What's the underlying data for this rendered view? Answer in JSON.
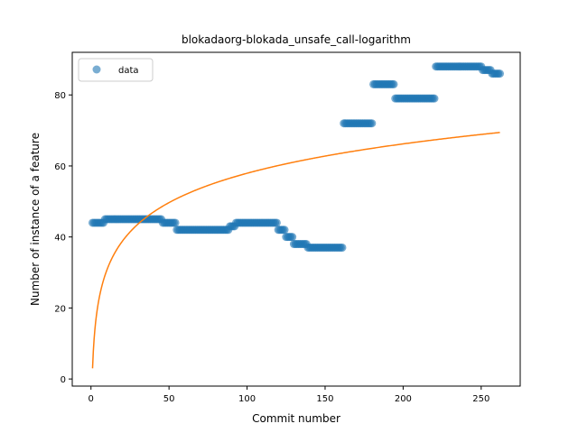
{
  "chart_data": {
    "type": "scatter",
    "title": "blokadaorg-blokada_unsafe_call-logarithm",
    "xlabel": "Commit number",
    "ylabel": "Number of instance of a feature",
    "xlim": [
      -12,
      275
    ],
    "ylim": [
      -2,
      92
    ],
    "xticks": [
      0,
      50,
      100,
      150,
      200,
      250
    ],
    "yticks": [
      0,
      20,
      40,
      60,
      80
    ],
    "legend": {
      "position": "top-left",
      "entries": [
        "data"
      ]
    },
    "grid": false,
    "colors": {
      "data": "#1f77b4",
      "fit": "#ff7f0e"
    },
    "series": [
      {
        "name": "data",
        "kind": "scatter",
        "segments": [
          {
            "x_start": 1,
            "x_end": 8,
            "y": 44
          },
          {
            "x_start": 9,
            "x_end": 45,
            "y": 45
          },
          {
            "x_start": 46,
            "x_end": 54,
            "y": 44
          },
          {
            "x_start": 55,
            "x_end": 88,
            "y": 42
          },
          {
            "x_start": 89,
            "x_end": 92,
            "y": 43
          },
          {
            "x_start": 93,
            "x_end": 119,
            "y": 44
          },
          {
            "x_start": 120,
            "x_end": 124,
            "y": 42
          },
          {
            "x_start": 125,
            "x_end": 129,
            "y": 40
          },
          {
            "x_start": 130,
            "x_end": 138,
            "y": 38
          },
          {
            "x_start": 139,
            "x_end": 161,
            "y": 37
          },
          {
            "x_start": 162,
            "x_end": 180,
            "y": 72
          },
          {
            "x_start": 181,
            "x_end": 194,
            "y": 83
          },
          {
            "x_start": 195,
            "x_end": 220,
            "y": 79
          },
          {
            "x_start": 221,
            "x_end": 250,
            "y": 88
          },
          {
            "x_start": 251,
            "x_end": 256,
            "y": 87
          },
          {
            "x_start": 257,
            "x_end": 262,
            "y": 86
          }
        ]
      },
      {
        "kind": "line",
        "function": "logarithmic",
        "a": 3,
        "b": 11.93,
        "x_start": 1,
        "x_end": 262
      }
    ]
  }
}
